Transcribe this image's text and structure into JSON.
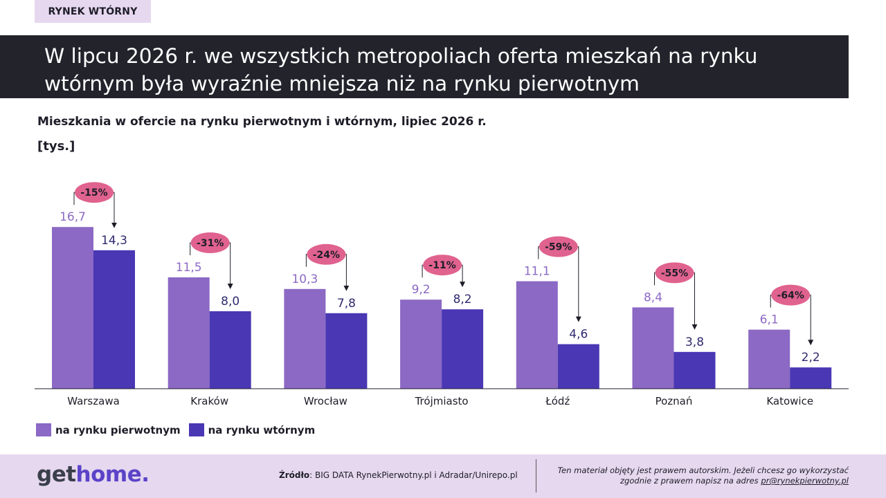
{
  "section_tag": "RYNEK WTÓRNY",
  "headline": "W lipcu 2026 r. we wszystkich metropoliach oferta mieszkań na rynku wtórnym była wyraźnie mniejsza niż na rynku pierwotnym",
  "colors": {
    "primary_market": "#8b69c4",
    "secondary_market": "#4a37b4",
    "diff_badge": "#e0628e",
    "headline_bg": "#23232c",
    "tag_bg": "#e6d8ef"
  },
  "chart_data": {
    "type": "bar",
    "title": "Mieszkania w ofercie na rynku pierwotnym i wtórnym, lipiec 2026 r.",
    "ylabel": "[tys.]",
    "categories": [
      "Warszawa",
      "Kraków",
      "Wrocław",
      "Trójmiasto",
      "Łódź",
      "Poznań",
      "Katowice"
    ],
    "series": [
      {
        "name": "na rynku pierwotnym",
        "values": [
          16.7,
          11.5,
          10.3,
          9.2,
          11.1,
          8.4,
          6.1
        ],
        "labels": [
          "16,7",
          "11,5",
          "10,3",
          "9,2",
          "11,1",
          "8,4",
          "6,1"
        ]
      },
      {
        "name": "na rynku wtórnym",
        "values": [
          14.3,
          8.0,
          7.8,
          8.2,
          4.6,
          3.8,
          2.2
        ],
        "labels": [
          "14,3",
          "8,0",
          "7,8",
          "8,2",
          "4,6",
          "3,8",
          "2,2"
        ]
      }
    ],
    "differences": [
      "-15%",
      "-31%",
      "-24%",
      "-11%",
      "-59%",
      "-55%",
      "-64%"
    ],
    "ylim": [
      0,
      18
    ],
    "legend": "bottom-left",
    "grid": false
  },
  "footer": {
    "logo_part1": "get",
    "logo_part2": "home.",
    "source_label": "Źródło",
    "source_text": ": BIG DATA RynekPierwotny.pl i Adradar/Unirepo.pl",
    "copyright_line1": "Ten materiał objęty jest prawem autorskim. Jeżeli chcesz go wykorzystać",
    "copyright_line2": "zgodnie z prawem napisz na adres ",
    "copyright_email": "pr@rynekpierwotny.pl"
  }
}
